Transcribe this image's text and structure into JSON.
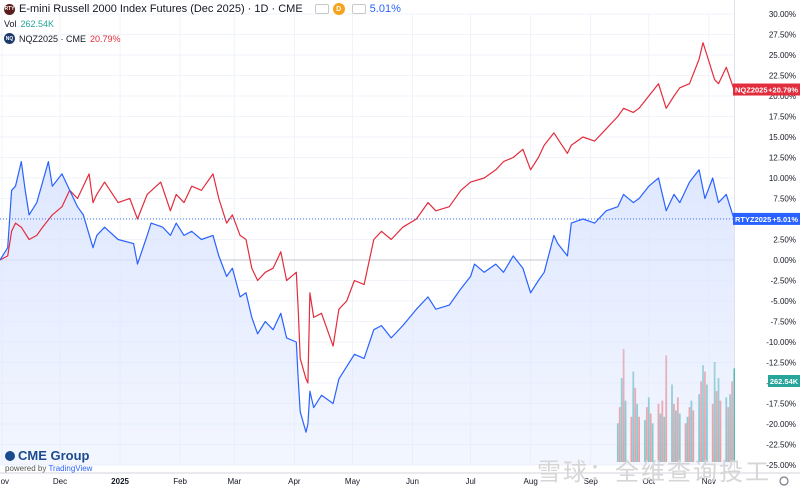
{
  "header": {
    "title": "E-mini Russell 2000 Index Futures (Dec 2025) · 1D · CME",
    "icon_text_main": "RTY",
    "d_badge": "D",
    "change_pct": "5.01%",
    "volume_label": "Vol",
    "volume_value": "262.54K",
    "compare_icon_text": "NQ",
    "compare_label": "NQZ2025 · CME",
    "compare_change_pct": "20.79%"
  },
  "brand": {
    "name": "CME Group",
    "powered_prefix": "powered by",
    "powered_brand": "TradingView"
  },
  "watermark": "雪球：全维查询投工",
  "colors": {
    "rty": "#2962ff",
    "rty_fill": "#dde6ff",
    "nq": "#e22d3d",
    "vol_up": "#26a69a",
    "vol_down": "#ef5350"
  },
  "chart_data": {
    "type": "line",
    "x_axis": {
      "tick_labels": [
        "Nov",
        "Dec",
        "2025",
        "Feb",
        "Mar",
        "Apr",
        "May",
        "Jun",
        "Jul",
        "Aug",
        "Sep",
        "Oct",
        "Nov"
      ],
      "start": "2024-10-31",
      "end": "2025-11-14"
    },
    "y_axis": {
      "unit": "%",
      "ylim": [
        -25,
        30
      ],
      "tick_labels": [
        "30.00%",
        "27.50%",
        "25.00%",
        "22.50%",
        "20.00%",
        "17.50%",
        "15.00%",
        "12.50%",
        "10.00%",
        "7.50%",
        "5.00%",
        "2.50%",
        "0.00%",
        "-2.50%",
        "-5.00%",
        "-7.50%",
        "-10.00%",
        "-12.50%",
        "-15.00%",
        "-17.50%",
        "-20.00%",
        "-22.50%",
        "-25.00%"
      ]
    },
    "series": [
      {
        "name": "RTYZ2025",
        "end_label": "RTYZ2025",
        "end_value_label": "+5.01%",
        "last_value": 5.01,
        "points": [
          [
            "2024-10-31",
            0.0
          ],
          [
            "2024-11-04",
            1.5
          ],
          [
            "2024-11-06",
            8.5
          ],
          [
            "2024-11-08",
            9.0
          ],
          [
            "2024-11-11",
            12.0
          ],
          [
            "2024-11-13",
            8.5
          ],
          [
            "2024-11-15",
            5.5
          ],
          [
            "2024-11-19",
            7.0
          ],
          [
            "2024-11-22",
            9.5
          ],
          [
            "2024-11-25",
            12.0
          ],
          [
            "2024-11-27",
            9.0
          ],
          [
            "2024-12-02",
            10.5
          ],
          [
            "2024-12-05",
            9.0
          ],
          [
            "2024-12-10",
            6.5
          ],
          [
            "2024-12-13",
            5.5
          ],
          [
            "2024-12-18",
            1.5
          ],
          [
            "2024-12-20",
            3.0
          ],
          [
            "2024-12-24",
            4.0
          ],
          [
            "2024-12-31",
            2.5
          ],
          [
            "2025-01-08",
            2.0
          ],
          [
            "2025-01-10",
            -0.5
          ],
          [
            "2025-01-15",
            3.0
          ],
          [
            "2025-01-17",
            4.5
          ],
          [
            "2025-01-23",
            4.0
          ],
          [
            "2025-01-27",
            3.0
          ],
          [
            "2025-01-30",
            4.5
          ],
          [
            "2025-02-03",
            3.0
          ],
          [
            "2025-02-07",
            3.5
          ],
          [
            "2025-02-12",
            2.5
          ],
          [
            "2025-02-18",
            3.0
          ],
          [
            "2025-02-21",
            0.5
          ],
          [
            "2025-02-25",
            -2.0
          ],
          [
            "2025-02-28",
            -1.0
          ],
          [
            "2025-03-04",
            -4.5
          ],
          [
            "2025-03-07",
            -4.0
          ],
          [
            "2025-03-10",
            -7.0
          ],
          [
            "2025-03-13",
            -9.0
          ],
          [
            "2025-03-17",
            -7.5
          ],
          [
            "2025-03-21",
            -8.5
          ],
          [
            "2025-03-25",
            -6.5
          ],
          [
            "2025-03-28",
            -9.5
          ],
          [
            "2025-04-02",
            -10.0
          ],
          [
            "2025-04-03",
            -14.5
          ],
          [
            "2025-04-04",
            -18.5
          ],
          [
            "2025-04-07",
            -21.0
          ],
          [
            "2025-04-08",
            -20.0
          ],
          [
            "2025-04-09",
            -16.0
          ],
          [
            "2025-04-11",
            -18.0
          ],
          [
            "2025-04-15",
            -16.5
          ],
          [
            "2025-04-21",
            -17.5
          ],
          [
            "2025-04-24",
            -14.5
          ],
          [
            "2025-04-28",
            -13.0
          ],
          [
            "2025-05-02",
            -11.5
          ],
          [
            "2025-05-07",
            -12.0
          ],
          [
            "2025-05-12",
            -8.5
          ],
          [
            "2025-05-16",
            -8.0
          ],
          [
            "2025-05-21",
            -9.5
          ],
          [
            "2025-05-27",
            -8.0
          ],
          [
            "2025-06-03",
            -6.0
          ],
          [
            "2025-06-09",
            -4.5
          ],
          [
            "2025-06-13",
            -6.0
          ],
          [
            "2025-06-20",
            -5.5
          ],
          [
            "2025-06-26",
            -3.5
          ],
          [
            "2025-07-01",
            -2.0
          ],
          [
            "2025-07-03",
            -0.5
          ],
          [
            "2025-07-08",
            -1.5
          ],
          [
            "2025-07-14",
            -0.5
          ],
          [
            "2025-07-18",
            -1.5
          ],
          [
            "2025-07-23",
            0.5
          ],
          [
            "2025-07-28",
            -1.0
          ],
          [
            "2025-08-01",
            -4.0
          ],
          [
            "2025-08-05",
            -2.5
          ],
          [
            "2025-08-08",
            -1.5
          ],
          [
            "2025-08-13",
            3.0
          ],
          [
            "2025-08-15",
            2.0
          ],
          [
            "2025-08-20",
            0.5
          ],
          [
            "2025-08-22",
            4.5
          ],
          [
            "2025-08-28",
            5.0
          ],
          [
            "2025-09-03",
            4.5
          ],
          [
            "2025-09-09",
            6.0
          ],
          [
            "2025-09-15",
            6.5
          ],
          [
            "2025-09-18",
            8.0
          ],
          [
            "2025-09-23",
            7.0
          ],
          [
            "2025-09-26",
            7.5
          ],
          [
            "2025-10-01",
            9.0
          ],
          [
            "2025-10-06",
            10.0
          ],
          [
            "2025-10-10",
            6.0
          ],
          [
            "2025-10-14",
            8.0
          ],
          [
            "2025-10-17",
            7.0
          ],
          [
            "2025-10-22",
            9.5
          ],
          [
            "2025-10-27",
            11.0
          ],
          [
            "2025-10-30",
            7.5
          ],
          [
            "2025-11-03",
            10.0
          ],
          [
            "2025-11-06",
            7.0
          ],
          [
            "2025-11-10",
            8.0
          ],
          [
            "2025-11-14",
            5.01
          ]
        ]
      },
      {
        "name": "NQZ2025",
        "end_label": "NQZ2025",
        "end_value_label": "+20.79%",
        "last_value": 20.79,
        "points": [
          [
            "2024-10-31",
            0.0
          ],
          [
            "2024-11-04",
            0.5
          ],
          [
            "2024-11-06",
            3.5
          ],
          [
            "2024-11-08",
            4.5
          ],
          [
            "2024-11-11",
            4.0
          ],
          [
            "2024-11-15",
            2.5
          ],
          [
            "2024-11-19",
            3.0
          ],
          [
            "2024-11-22",
            4.0
          ],
          [
            "2024-11-27",
            5.5
          ],
          [
            "2024-12-02",
            6.5
          ],
          [
            "2024-12-06",
            8.5
          ],
          [
            "2024-12-10",
            7.5
          ],
          [
            "2024-12-16",
            10.5
          ],
          [
            "2024-12-18",
            7.0
          ],
          [
            "2024-12-20",
            8.0
          ],
          [
            "2024-12-24",
            9.5
          ],
          [
            "2024-12-31",
            7.0
          ],
          [
            "2025-01-06",
            7.5
          ],
          [
            "2025-01-10",
            5.0
          ],
          [
            "2025-01-15",
            8.0
          ],
          [
            "2025-01-22",
            9.5
          ],
          [
            "2025-01-27",
            6.0
          ],
          [
            "2025-01-30",
            8.0
          ],
          [
            "2025-02-03",
            7.0
          ],
          [
            "2025-02-07",
            9.0
          ],
          [
            "2025-02-12",
            8.5
          ],
          [
            "2025-02-18",
            10.5
          ],
          [
            "2025-02-21",
            7.5
          ],
          [
            "2025-02-25",
            4.5
          ],
          [
            "2025-02-28",
            5.5
          ],
          [
            "2025-03-04",
            3.0
          ],
          [
            "2025-03-07",
            2.5
          ],
          [
            "2025-03-10",
            -1.0
          ],
          [
            "2025-03-13",
            -2.5
          ],
          [
            "2025-03-17",
            -1.5
          ],
          [
            "2025-03-21",
            -1.0
          ],
          [
            "2025-03-25",
            1.0
          ],
          [
            "2025-03-28",
            -2.5
          ],
          [
            "2025-04-02",
            -1.5
          ],
          [
            "2025-04-03",
            -6.0
          ],
          [
            "2025-04-04",
            -12.0
          ],
          [
            "2025-04-07",
            -14.5
          ],
          [
            "2025-04-08",
            -15.0
          ],
          [
            "2025-04-09",
            -4.0
          ],
          [
            "2025-04-11",
            -7.0
          ],
          [
            "2025-04-15",
            -6.5
          ],
          [
            "2025-04-21",
            -10.5
          ],
          [
            "2025-04-24",
            -6.0
          ],
          [
            "2025-04-28",
            -5.0
          ],
          [
            "2025-05-02",
            -2.5
          ],
          [
            "2025-05-07",
            -3.0
          ],
          [
            "2025-05-12",
            2.5
          ],
          [
            "2025-05-16",
            3.5
          ],
          [
            "2025-05-21",
            2.5
          ],
          [
            "2025-05-27",
            4.0
          ],
          [
            "2025-06-03",
            5.0
          ],
          [
            "2025-06-09",
            7.0
          ],
          [
            "2025-06-13",
            6.0
          ],
          [
            "2025-06-20",
            6.5
          ],
          [
            "2025-06-26",
            8.5
          ],
          [
            "2025-07-01",
            9.5
          ],
          [
            "2025-07-08",
            10.0
          ],
          [
            "2025-07-14",
            11.0
          ],
          [
            "2025-07-18",
            12.0
          ],
          [
            "2025-07-23",
            12.5
          ],
          [
            "2025-07-28",
            13.5
          ],
          [
            "2025-08-01",
            11.0
          ],
          [
            "2025-08-05",
            12.5
          ],
          [
            "2025-08-08",
            14.0
          ],
          [
            "2025-08-13",
            15.5
          ],
          [
            "2025-08-20",
            13.0
          ],
          [
            "2025-08-22",
            14.0
          ],
          [
            "2025-08-28",
            15.0
          ],
          [
            "2025-09-03",
            14.5
          ],
          [
            "2025-09-09",
            16.0
          ],
          [
            "2025-09-15",
            17.5
          ],
          [
            "2025-09-18",
            18.5
          ],
          [
            "2025-09-23",
            18.0
          ],
          [
            "2025-09-26",
            18.5
          ],
          [
            "2025-10-01",
            20.0
          ],
          [
            "2025-10-06",
            21.5
          ],
          [
            "2025-10-10",
            18.5
          ],
          [
            "2025-10-14",
            20.0
          ],
          [
            "2025-10-17",
            21.0
          ],
          [
            "2025-10-22",
            21.5
          ],
          [
            "2025-10-27",
            24.5
          ],
          [
            "2025-10-29",
            26.5
          ],
          [
            "2025-10-31",
            25.0
          ],
          [
            "2025-11-04",
            22.0
          ],
          [
            "2025-11-06",
            21.5
          ],
          [
            "2025-11-10",
            23.5
          ],
          [
            "2025-11-14",
            20.79
          ]
        ]
      }
    ],
    "volume": {
      "label": "262.54K",
      "last_value": 262.54,
      "bars": [
        [
          "2025-09-15",
          60,
          "up"
        ],
        [
          "2025-09-16",
          85,
          "down"
        ],
        [
          "2025-09-17",
          130,
          "up"
        ],
        [
          "2025-09-18",
          175,
          "down"
        ],
        [
          "2025-09-19",
          95,
          "up"
        ],
        [
          "2025-09-22",
          70,
          "down"
        ],
        [
          "2025-09-23",
          140,
          "up"
        ],
        [
          "2025-09-24",
          115,
          "down"
        ],
        [
          "2025-09-25",
          90,
          "up"
        ],
        [
          "2025-09-26",
          70,
          "down"
        ],
        [
          "2025-09-29",
          65,
          "up"
        ],
        [
          "2025-09-30",
          85,
          "down"
        ],
        [
          "2025-10-01",
          100,
          "up"
        ],
        [
          "2025-10-02",
          75,
          "down"
        ],
        [
          "2025-10-03",
          60,
          "up"
        ],
        [
          "2025-10-06",
          90,
          "down"
        ],
        [
          "2025-10-07",
          75,
          "up"
        ],
        [
          "2025-10-08",
          95,
          "down"
        ],
        [
          "2025-10-09",
          70,
          "up"
        ],
        [
          "2025-10-10",
          165,
          "down"
        ],
        [
          "2025-10-13",
          120,
          "up"
        ],
        [
          "2025-10-14",
          90,
          "down"
        ],
        [
          "2025-10-15",
          80,
          "up"
        ],
        [
          "2025-10-16",
          100,
          "down"
        ],
        [
          "2025-10-17",
          75,
          "up"
        ],
        [
          "2025-10-20",
          60,
          "down"
        ],
        [
          "2025-10-21",
          70,
          "up"
        ],
        [
          "2025-10-22",
          85,
          "down"
        ],
        [
          "2025-10-23",
          95,
          "up"
        ],
        [
          "2025-10-24",
          80,
          "down"
        ],
        [
          "2025-10-27",
          105,
          "up"
        ],
        [
          "2025-10-28",
          125,
          "down"
        ],
        [
          "2025-10-29",
          150,
          "up"
        ],
        [
          "2025-10-30",
          140,
          "down"
        ],
        [
          "2025-10-31",
          120,
          "up"
        ],
        [
          "2025-11-03",
          90,
          "down"
        ],
        [
          "2025-11-04",
          155,
          "up"
        ],
        [
          "2025-11-05",
          110,
          "down"
        ],
        [
          "2025-11-06",
          130,
          "up"
        ],
        [
          "2025-11-07",
          95,
          "down"
        ],
        [
          "2025-11-10",
          100,
          "up"
        ],
        [
          "2025-11-11",
          85,
          "down"
        ],
        [
          "2025-11-12",
          105,
          "up"
        ],
        [
          "2025-11-13",
          125,
          "down"
        ],
        [
          "2025-11-14",
          145,
          "up"
        ]
      ]
    }
  }
}
